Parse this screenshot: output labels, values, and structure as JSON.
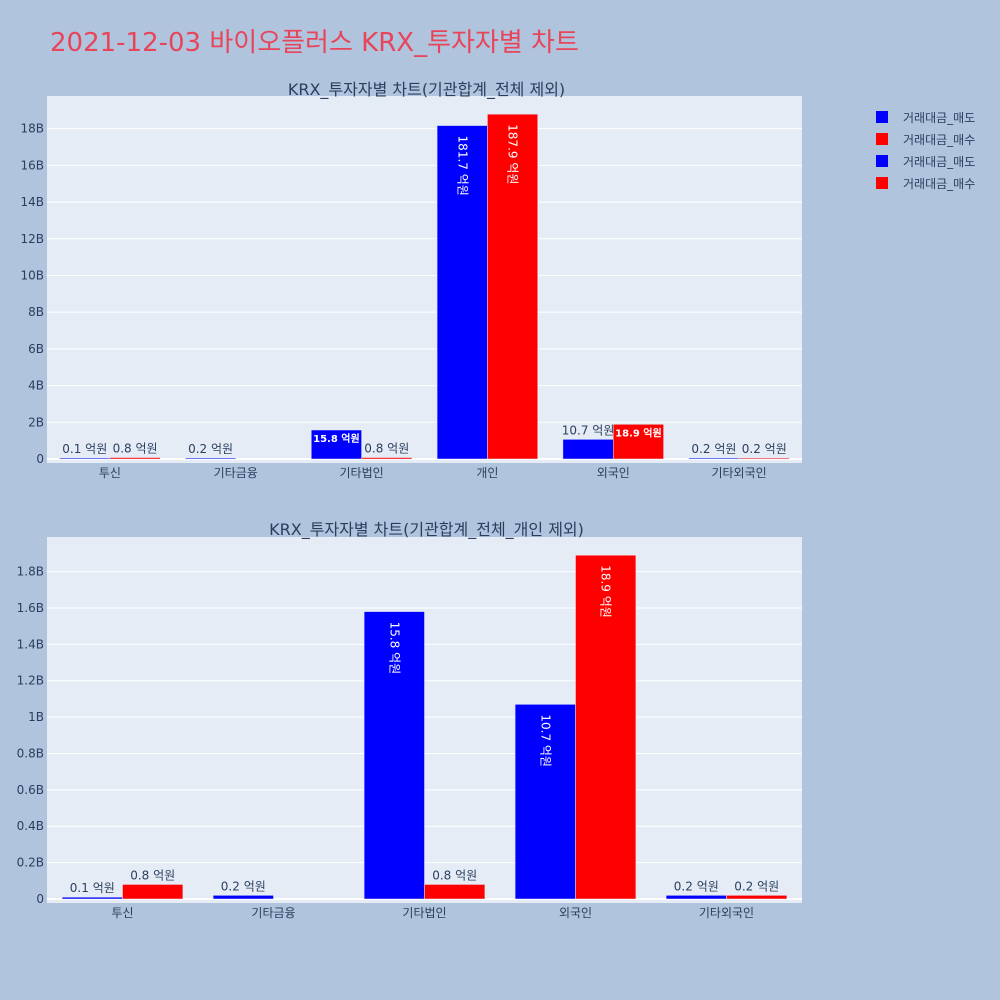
{
  "title": "2021-12-03 바이오플러스 KRX_투자자별 차트",
  "colors": {
    "sell": "#0000ff",
    "buy": "#ff0000",
    "plot_bg": "#e5ecf6",
    "page_bg": "#b0c4de",
    "title": "#e8455a"
  },
  "legend": [
    {
      "label": "거래대금_매도",
      "color": "#0000ff"
    },
    {
      "label": "거래대금_매수",
      "color": "#ff0000"
    },
    {
      "label": "거래대금_매도",
      "color": "#0000ff"
    },
    {
      "label": "거래대금_매수",
      "color": "#ff0000"
    }
  ],
  "chart_data": [
    {
      "type": "bar",
      "title": "KRX_투자자별 차트(기관합계_전체 제외)",
      "categories": [
        "투신",
        "기타금융",
        "기타법인",
        "개인",
        "외국인",
        "기타외국인"
      ],
      "series": [
        {
          "name": "거래대금_매도",
          "color": "#0000ff",
          "values": [
            0.01,
            0.02,
            1.58,
            18.17,
            1.07,
            0.02
          ],
          "labels": [
            "0.1 억원",
            "0.2 억원",
            "15.8 억원",
            "181.7 억원",
            "10.7 억원",
            "0.2 억원"
          ]
        },
        {
          "name": "거래대금_매수",
          "color": "#ff0000",
          "values": [
            0.08,
            null,
            0.08,
            18.79,
            1.89,
            0.02
          ],
          "labels": [
            "0.8 억원",
            "",
            "0.8 억원",
            "187.9 억원",
            "18.9 억원",
            "0.2 억원"
          ]
        }
      ],
      "yticks": [
        0,
        2,
        4,
        6,
        8,
        10,
        12,
        14,
        16,
        18
      ],
      "ytick_labels": [
        "0",
        "2B",
        "4B",
        "6B",
        "8B",
        "10B",
        "12B",
        "14B",
        "16B",
        "18B"
      ],
      "ylim": [
        0,
        19.78
      ],
      "grid": true
    },
    {
      "type": "bar",
      "title": "KRX_투자자별 차트(기관합계_전체_개인 제외)",
      "categories": [
        "투신",
        "기타금융",
        "기타법인",
        "외국인",
        "기타외국인"
      ],
      "series": [
        {
          "name": "거래대금_매도",
          "color": "#0000ff",
          "values": [
            0.01,
            0.02,
            1.58,
            1.07,
            0.02
          ],
          "labels": [
            "0.1 억원",
            "0.2 억원",
            "15.8 억원",
            "10.7 억원",
            "0.2 억원"
          ]
        },
        {
          "name": "거래대금_매수",
          "color": "#ff0000",
          "values": [
            0.08,
            null,
            0.08,
            1.89,
            0.02
          ],
          "labels": [
            "0.8 억원",
            "",
            "0.8 억원",
            "18.9 억원",
            "0.2 억원"
          ]
        }
      ],
      "yticks": [
        0,
        0.2,
        0.4,
        0.6,
        0.8,
        1.0,
        1.2,
        1.4,
        1.6,
        1.8
      ],
      "ytick_labels": [
        "0",
        "0.2B",
        "0.4B",
        "0.6B",
        "0.8B",
        "1B",
        "1.2B",
        "1.4B",
        "1.6B",
        "1.8B"
      ],
      "ylim": [
        0,
        1.99
      ],
      "grid": true
    }
  ]
}
